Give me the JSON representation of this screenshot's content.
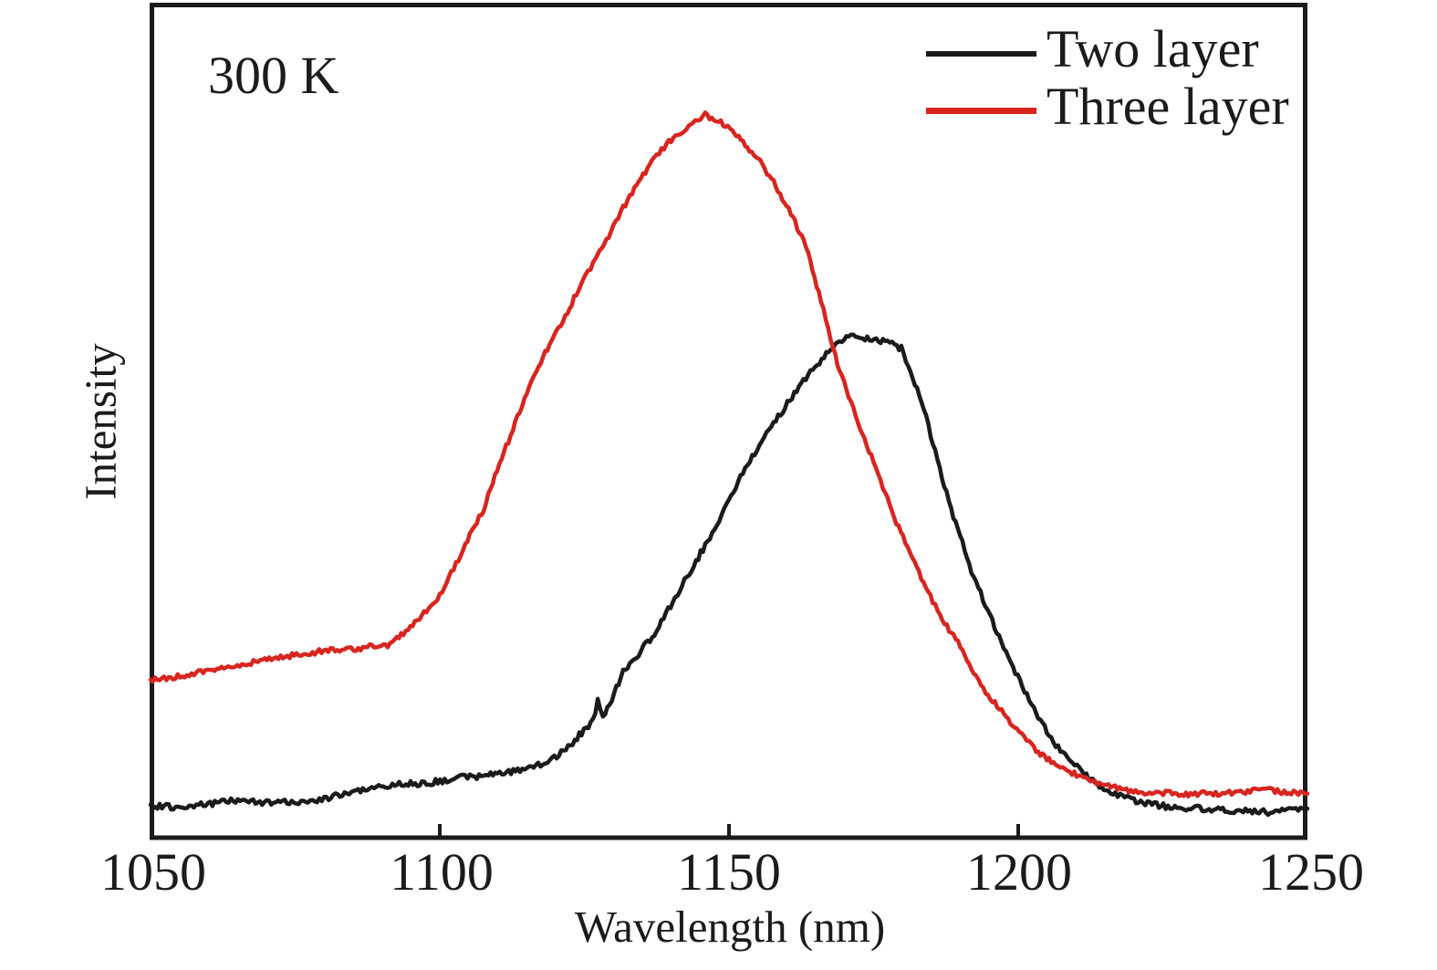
{
  "annotation": {
    "text": "300 K"
  },
  "axis": {
    "xlabel": "Wavelength (nm)",
    "ylabel": "Intensity",
    "x_tick_labels": [
      "1050",
      "1100",
      "1150",
      "1200",
      "1250"
    ]
  },
  "legend": {
    "items": [
      {
        "label": "Two layer",
        "color": "#1b1b1b"
      },
      {
        "label": "Three layer",
        "color": "#d8251f"
      }
    ]
  },
  "chart_data": {
    "type": "line",
    "title": "",
    "xlabel": "Wavelength (nm)",
    "ylabel": "Intensity",
    "annotations": [
      "300 K"
    ],
    "grid": false,
    "legend_position": "top-right",
    "x_axis": {
      "min": 1050,
      "max": 1250,
      "ticks": [
        1050,
        1100,
        1150,
        1200,
        1250
      ],
      "unit": "nm"
    },
    "y_axis": {
      "min": 0,
      "max": 1,
      "ticks": [],
      "note": "arbitrary units, no tick labels shown"
    },
    "series": [
      {
        "name": "Two layer",
        "color": "#1b1b1b",
        "peak_nm": 1172,
        "points": [
          [
            1050.0,
            0.04
          ],
          [
            1055.5,
            0.039
          ],
          [
            1060.3,
            0.043
          ],
          [
            1064.7,
            0.047
          ],
          [
            1068.9,
            0.045
          ],
          [
            1074.4,
            0.044
          ],
          [
            1080.0,
            0.049
          ],
          [
            1086.3,
            0.059
          ],
          [
            1092.6,
            0.066
          ],
          [
            1098.1,
            0.068
          ],
          [
            1103.6,
            0.074
          ],
          [
            1108.4,
            0.077
          ],
          [
            1113.1,
            0.082
          ],
          [
            1117.8,
            0.09
          ],
          [
            1121.8,
            0.107
          ],
          [
            1124.9,
            0.131
          ],
          [
            1126.5,
            0.142
          ],
          [
            1127.3,
            0.166
          ],
          [
            1128.2,
            0.144
          ],
          [
            1131.7,
            0.2
          ],
          [
            1137.1,
            0.246
          ],
          [
            1142.3,
            0.309
          ],
          [
            1147.5,
            0.372
          ],
          [
            1152.8,
            0.445
          ],
          [
            1157.3,
            0.494
          ],
          [
            1162.5,
            0.546
          ],
          [
            1167.2,
            0.584
          ],
          [
            1169.9,
            0.601
          ],
          [
            1172.3,
            0.604
          ],
          [
            1174.3,
            0.599
          ],
          [
            1177.0,
            0.597
          ],
          [
            1179.8,
            0.588
          ],
          [
            1183.3,
            0.525
          ],
          [
            1188.0,
            0.404
          ],
          [
            1192.3,
            0.314
          ],
          [
            1197.5,
            0.23
          ],
          [
            1202.7,
            0.156
          ],
          [
            1205.7,
            0.12
          ],
          [
            1208.5,
            0.098
          ],
          [
            1211.4,
            0.079
          ],
          [
            1214.8,
            0.059
          ],
          [
            1219.6,
            0.047
          ],
          [
            1225.1,
            0.04
          ],
          [
            1233.8,
            0.036
          ],
          [
            1243.2,
            0.033
          ],
          [
            1250.0,
            0.037
          ]
        ]
      },
      {
        "name": "Three layer",
        "color": "#d8251f",
        "peak_nm": 1146,
        "points": [
          [
            1050.0,
            0.19
          ],
          [
            1054.7,
            0.196
          ],
          [
            1060.3,
            0.202
          ],
          [
            1066.2,
            0.21
          ],
          [
            1072.1,
            0.218
          ],
          [
            1077.6,
            0.224
          ],
          [
            1082.3,
            0.227
          ],
          [
            1087.1,
            0.23
          ],
          [
            1091.0,
            0.233
          ],
          [
            1094.5,
            0.251
          ],
          [
            1097.3,
            0.271
          ],
          [
            1100.0,
            0.293
          ],
          [
            1102.8,
            0.33
          ],
          [
            1105.2,
            0.366
          ],
          [
            1107.6,
            0.396
          ],
          [
            1110.7,
            0.457
          ],
          [
            1113.4,
            0.505
          ],
          [
            1115.9,
            0.549
          ],
          [
            1118.6,
            0.588
          ],
          [
            1121.3,
            0.621
          ],
          [
            1124.0,
            0.659
          ],
          [
            1126.5,
            0.691
          ],
          [
            1129.2,
            0.723
          ],
          [
            1131.7,
            0.756
          ],
          [
            1134.4,
            0.789
          ],
          [
            1137.1,
            0.815
          ],
          [
            1139.6,
            0.836
          ],
          [
            1142.3,
            0.851
          ],
          [
            1144.2,
            0.861
          ],
          [
            1145.9,
            0.868
          ],
          [
            1147.8,
            0.862
          ],
          [
            1150.2,
            0.851
          ],
          [
            1152.8,
            0.833
          ],
          [
            1155.4,
            0.811
          ],
          [
            1158.1,
            0.783
          ],
          [
            1160.7,
            0.75
          ],
          [
            1163.3,
            0.71
          ],
          [
            1165.9,
            0.645
          ],
          [
            1168.0,
            0.587
          ],
          [
            1169.9,
            0.546
          ],
          [
            1172.3,
            0.501
          ],
          [
            1174.6,
            0.459
          ],
          [
            1177.0,
            0.415
          ],
          [
            1179.3,
            0.374
          ],
          [
            1181.7,
            0.337
          ],
          [
            1184.4,
            0.297
          ],
          [
            1186.9,
            0.264
          ],
          [
            1189.6,
            0.235
          ],
          [
            1192.3,
            0.2
          ],
          [
            1194.8,
            0.173
          ],
          [
            1197.5,
            0.15
          ],
          [
            1200.2,
            0.128
          ],
          [
            1202.7,
            0.109
          ],
          [
            1205.7,
            0.094
          ],
          [
            1208.5,
            0.082
          ],
          [
            1211.7,
            0.072
          ],
          [
            1214.8,
            0.066
          ],
          [
            1218.7,
            0.059
          ],
          [
            1223.5,
            0.056
          ],
          [
            1229.0,
            0.054
          ],
          [
            1236.1,
            0.056
          ],
          [
            1243.2,
            0.059
          ],
          [
            1250.0,
            0.055
          ]
        ]
      }
    ]
  }
}
